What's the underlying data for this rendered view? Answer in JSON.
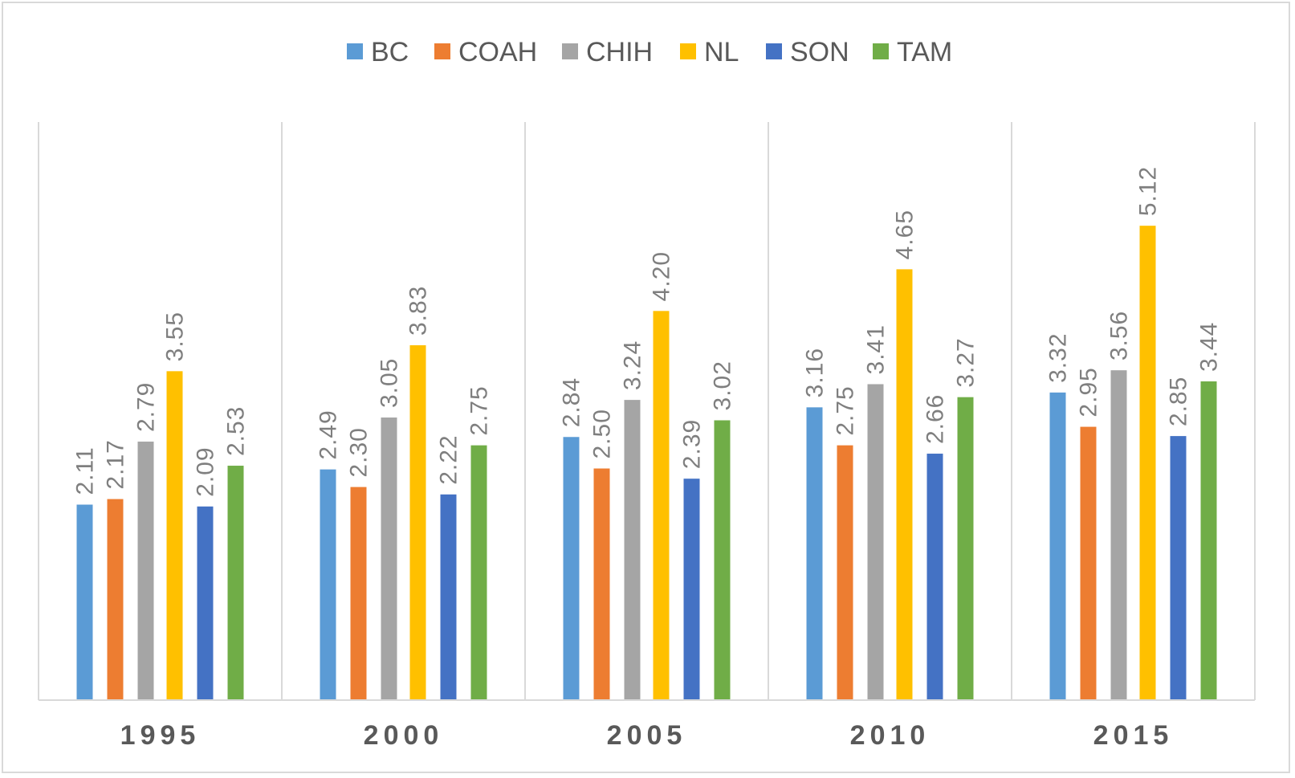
{
  "chart_data": {
    "type": "bar",
    "title": "",
    "xlabel": "",
    "ylabel": "",
    "categories": [
      "1995",
      "2000",
      "2005",
      "2010",
      "2015"
    ],
    "ylim": [
      0,
      6
    ],
    "grid": "vertical separators between categories",
    "legend_position": "top",
    "data_labels": "rotated, above bars, two decimals",
    "series": [
      {
        "name": "BC",
        "color": "#5b9bd5",
        "values": [
          2.11,
          2.49,
          2.84,
          3.16,
          3.32
        ],
        "labels": [
          "2.11",
          "2.49",
          "2.84",
          "3.16",
          "3.32"
        ]
      },
      {
        "name": "COAH",
        "color": "#ed7d31",
        "values": [
          2.17,
          2.3,
          2.5,
          2.75,
          2.95
        ],
        "labels": [
          "2.17",
          "2.30",
          "2.50",
          "2.75",
          "2.95"
        ]
      },
      {
        "name": "CHIH",
        "color": "#a5a5a5",
        "values": [
          2.79,
          3.05,
          3.24,
          3.41,
          3.56
        ],
        "labels": [
          "2.79",
          "3.05",
          "3.24",
          "3.41",
          "3.56"
        ]
      },
      {
        "name": "NL",
        "color": "#ffc000",
        "values": [
          3.55,
          3.83,
          4.2,
          4.65,
          5.12
        ],
        "labels": [
          "3.55",
          "3.83",
          "4.20",
          "4.65",
          "5.12"
        ]
      },
      {
        "name": "SON",
        "color": "#4472c4",
        "values": [
          2.09,
          2.22,
          2.39,
          2.66,
          2.85
        ],
        "labels": [
          "2.09",
          "2.22",
          "2.39",
          "2.66",
          "2.85"
        ]
      },
      {
        "name": "TAM",
        "color": "#70ad47",
        "values": [
          2.53,
          2.75,
          3.02,
          3.27,
          3.44
        ],
        "labels": [
          "2.53",
          "2.75",
          "3.02",
          "3.27",
          "3.44"
        ]
      }
    ]
  },
  "colors": {
    "axis": "#d9d9d9",
    "gridline": "#d9d9d9",
    "label_text": "#7f7f7f",
    "category_text": "#595959"
  }
}
